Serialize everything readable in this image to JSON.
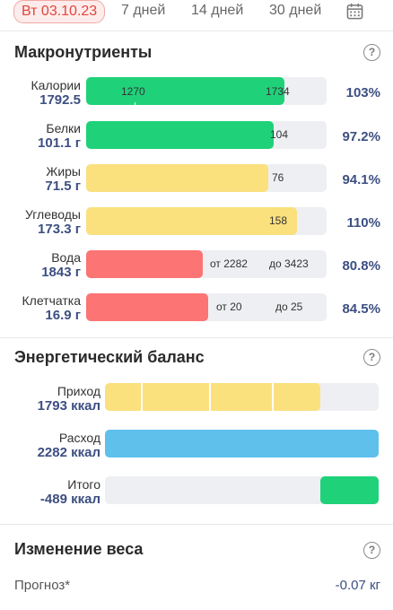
{
  "tabs": [
    {
      "label": "Вт 03.10.23",
      "active": true
    },
    {
      "label": "7 дней",
      "active": false
    },
    {
      "label": "14 дней",
      "active": false
    },
    {
      "label": "30 дней",
      "active": false
    }
  ],
  "calendar_icon": "calendar-icon",
  "macros": {
    "title": "Макронутриенты",
    "help": "?",
    "rows": [
      {
        "label": "Калории",
        "value": "1792.5",
        "color": "green",
        "fill_fraction": 0.826,
        "marks": [
          "1270",
          "1734"
        ],
        "percent": "103%"
      },
      {
        "label": "Белки",
        "value": "101.1 г",
        "color": "green",
        "fill_fraction": 0.78,
        "marks": [
          "104"
        ],
        "percent": "97.2%"
      },
      {
        "label": "Жиры",
        "value": "71.5 г",
        "color": "yellow",
        "fill_fraction": 0.757,
        "marks": [
          "76"
        ],
        "percent": "94.1%"
      },
      {
        "label": "Углеводы",
        "value": "173.3 г",
        "color": "yellow",
        "fill_fraction": 0.875,
        "marks": [
          "158"
        ],
        "percent": "110%"
      },
      {
        "label": "Вода",
        "value": "1843 г",
        "color": "red",
        "fill_fraction": 0.486,
        "marks": [
          "от 2282",
          "до 3423"
        ],
        "percent": "80.8%"
      },
      {
        "label": "Клетчатка",
        "value": "16.9 г",
        "color": "red",
        "fill_fraction": 0.507,
        "marks": [
          "от 20",
          "до 25"
        ],
        "percent": "84.5%"
      }
    ]
  },
  "energy": {
    "title": "Энергетический баланс",
    "help": "?",
    "rows": [
      {
        "label": "Приход",
        "value": "1793 ккал",
        "color": "yellow",
        "fill_fraction": 0.787
      },
      {
        "label": "Расход",
        "value": "2282 ккал",
        "color": "blue",
        "fill_fraction": 1.0
      },
      {
        "label": "Итого",
        "value": "-489 ккал",
        "color": "green",
        "fill_fraction": 0.214
      }
    ]
  },
  "weight": {
    "title": "Изменение веса",
    "help": "?",
    "forecast_label": "Прогноз*",
    "forecast_value": "-0.07 кг"
  },
  "colors": {
    "accent_red": "#e0453d",
    "green": "#1fd27a",
    "yellow": "#fbe07e",
    "red": "#fc7473",
    "blue": "#5ec0eb",
    "value_text": "#3d4f82"
  }
}
